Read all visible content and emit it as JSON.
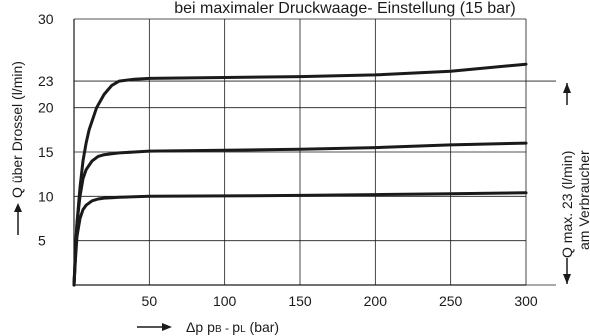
{
  "chart_data": {
    "type": "line",
    "title": "bei maximaler Druckwaage- Einstellung (15 bar)",
    "ylabel": "Q über Drossel (l/min)",
    "xlabel_prefix": "Δp",
    "xlabel_sub_b_main": "p",
    "xlabel_sub_b": "B",
    "xlabel_sep": " - ",
    "xlabel_sub_l_main": "p",
    "xlabel_sub_l": "L",
    "xlabel_unit": " (bar)",
    "right_annotation_line1": "Q max. 23 (l/min)",
    "right_annotation_line2": "am Verbraucher",
    "xlim": [
      0,
      300
    ],
    "ylim": [
      0,
      30
    ],
    "x_ticks": [
      50,
      100,
      150,
      200,
      250,
      300
    ],
    "y_ticks": [
      5,
      10,
      15,
      20,
      23,
      30
    ],
    "grid": true,
    "line_color": "#1a1a1a",
    "series": [
      {
        "x": [
          0,
          1,
          2,
          4,
          6,
          8,
          10,
          15,
          20,
          25,
          30,
          40,
          50,
          100,
          150,
          200,
          250,
          300
        ],
        "y": [
          0,
          3.5,
          7,
          11,
          14,
          16,
          17.5,
          20,
          21.5,
          22.5,
          23,
          23.2,
          23.3,
          23.4,
          23.5,
          23.7,
          24.1,
          24.9
        ]
      },
      {
        "x": [
          0,
          1,
          2,
          4,
          6,
          8,
          12,
          16,
          20,
          25,
          30,
          40,
          50,
          100,
          150,
          200,
          250,
          300
        ],
        "y": [
          0,
          4,
          7,
          10,
          12,
          13,
          14,
          14.5,
          14.7,
          14.8,
          14.9,
          15,
          15.1,
          15.2,
          15.3,
          15.5,
          15.8,
          16
        ]
      },
      {
        "x": [
          0,
          1,
          2,
          4,
          6,
          8,
          12,
          16,
          20,
          25,
          30,
          40,
          50,
          100,
          150,
          200,
          250,
          300
        ],
        "y": [
          0,
          3,
          5.5,
          7.5,
          8.5,
          9,
          9.5,
          9.7,
          9.8,
          9.85,
          9.9,
          9.95,
          10,
          10.05,
          10.1,
          10.2,
          10.3,
          10.4
        ]
      }
    ]
  }
}
